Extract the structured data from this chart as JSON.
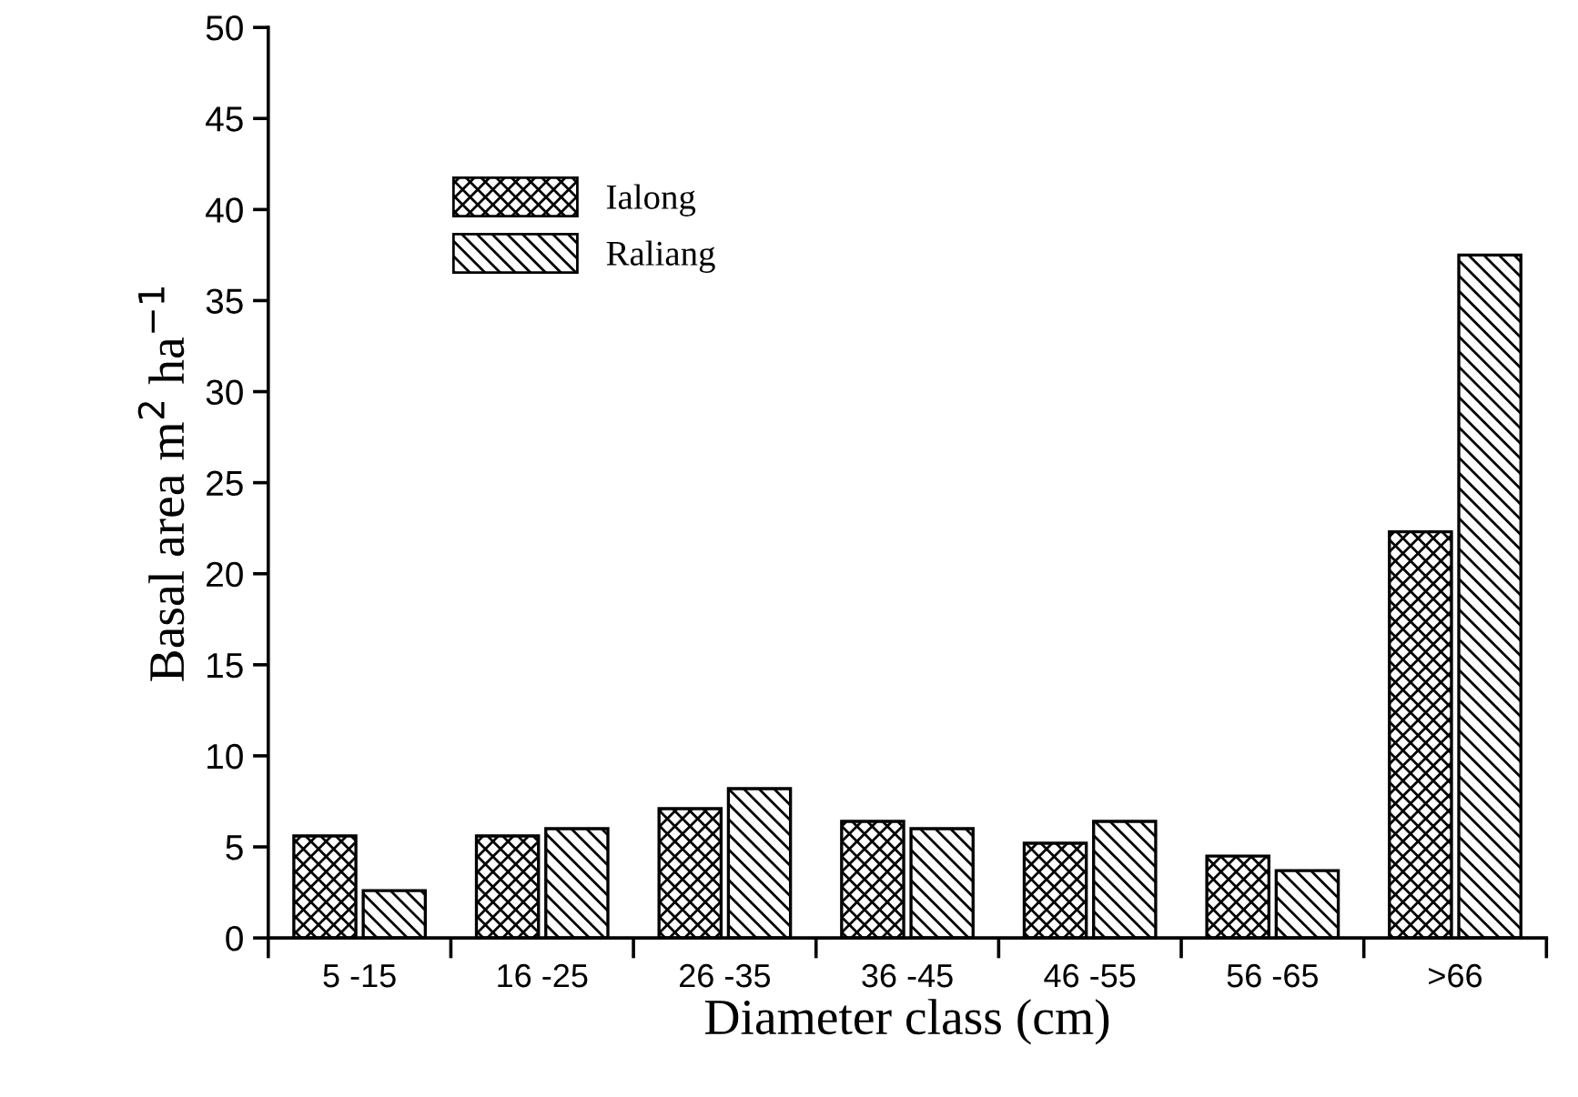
{
  "chart_data": {
    "type": "bar",
    "xlabel": "Diameter class (cm)",
    "ylabel": "Basal area m$^{2}$ ha$^{−1}$",
    "categories": [
      "5 -15",
      "16 -25",
      "26 -35",
      "36 -45",
      "46 -55",
      "56 -65",
      ">66"
    ],
    "series": [
      {
        "name": "Ialong",
        "color": "#000000",
        "values": [
          5.6,
          5.6,
          7.1,
          6.4,
          5.2,
          4.5,
          22.3
        ]
      },
      {
        "name": "Raliang",
        "color": "#000000",
        "values": [
          2.6,
          6.0,
          8.2,
          6.0,
          6.4,
          3.7,
          37.5
        ]
      }
    ],
    "ylim": [
      0,
      50
    ],
    "yticks": [
      0,
      5,
      10,
      15,
      20,
      25,
      30,
      35,
      40,
      45,
      50
    ],
    "grid": false,
    "legend": "top left"
  }
}
